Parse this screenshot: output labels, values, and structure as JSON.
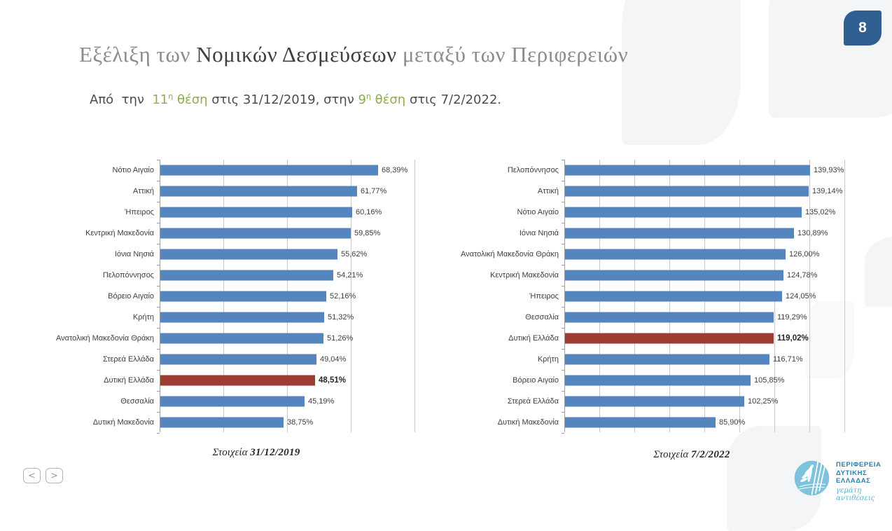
{
  "page_badge": "8",
  "title": {
    "part1": "Εξέλιξη των ",
    "part2": "Νομικών Δεσμεύσεων",
    "part3": " μεταξύ των Περιφερειών"
  },
  "subtitle": {
    "lead": "Από  την  ",
    "pos1": "11",
    "sup1": "η",
    "pos1b": " θέση",
    "mid": " στις 31/12/2019, στην ",
    "pos2": "9",
    "sup2": "η",
    "pos2b": " θέση",
    "tail": " στις 7/2/2022."
  },
  "colors": {
    "accent_blue": "#305F91",
    "bar_blue": "#5585BE",
    "bar_red": "#9E3B33",
    "green": "#8FAC52",
    "title_gray": "#8C8C8C",
    "title_dark": "#3F3F3F",
    "logo_circle": "#7EC3DB",
    "logo_text": "#2980A9"
  },
  "chart_data": [
    {
      "type": "bar",
      "orientation": "horizontal",
      "title": "Στοιχεία 31/12/2019",
      "categories": [
        "Νότιο Αιγαίο",
        "Αττική",
        "Ήπειρος",
        "Κεντρική Μακεδονία",
        "Ιόνια Νησιά",
        "Πελοπόννησος",
        "Βόρειο Αιγαίο",
        "Κρήτη",
        "Ανατολική Μακεδονία Θράκη",
        "Στερεά Ελλάδα",
        "Δυτική Ελλάδα",
        "Θεσσαλία",
        "Δυτική Μακεδονία"
      ],
      "values": [
        68.39,
        61.77,
        60.16,
        59.85,
        55.62,
        54.21,
        52.16,
        51.32,
        51.26,
        49.04,
        48.51,
        45.19,
        38.75
      ],
      "value_labels": [
        "68,39%",
        "61,77%",
        "60,16%",
        "59,85%",
        "55,62%",
        "54,21%",
        "52,16%",
        "51,32%",
        "51,26%",
        "49,04%",
        "48,51%",
        "45,19%",
        "38,75%"
      ],
      "highlight_index": 10,
      "highlight_category": "Δυτική Ελλάδα",
      "xlim": [
        0,
        80
      ],
      "xstep": 20,
      "grid": true,
      "bar_color": "#5585BE",
      "highlight_color": "#9E3B33"
    },
    {
      "type": "bar",
      "orientation": "horizontal",
      "title": "Στοιχεία 7/2/2022",
      "categories": [
        "Πελοπόννησος",
        "Αττική",
        "Νότιο Αιγαίο",
        "Ιόνια Νησιά",
        "Ανατολική Μακεδονία Θράκη",
        "Κεντρική Μακεδονία",
        "Ήπειρος",
        "Θεσσαλία",
        "Δυτική Ελλάδα",
        "Κρήτη",
        "Βόρειο Αιγαίο",
        "Στερεά Ελλάδα",
        "Δυτική Μακεδονία"
      ],
      "values": [
        139.93,
        139.14,
        135.02,
        130.89,
        126.0,
        124.78,
        124.05,
        119.29,
        119.02,
        116.71,
        105.85,
        102.25,
        85.9
      ],
      "value_labels": [
        "139,93%",
        "139,14%",
        "135,02%",
        "130,89%",
        "126,00%",
        "124,78%",
        "124,05%",
        "119,29%",
        "119,02%",
        "116,71%",
        "105,85%",
        "102,25%",
        "85,90%"
      ],
      "highlight_index": 8,
      "highlight_category": "Δυτική Ελλάδα",
      "xlim": [
        0,
        160
      ],
      "xstep": 20,
      "grid": true,
      "bar_color": "#5585BE",
      "highlight_color": "#9E3B33"
    }
  ],
  "captions": [
    {
      "prefix": "Στοιχεία ",
      "date": "31/12/2019"
    },
    {
      "prefix": "Στοιχεία ",
      "date": "7/2/2022"
    }
  ],
  "nav": {
    "prev": "<",
    "next": ">"
  },
  "logo": {
    "line1": "ΠΕΡΙΦΕΡΕΙΑ",
    "line2": "ΔΥΤΙΚΗΣ",
    "line3": "ΕΛΛΑΔΑΣ",
    "tagline": "γεμάτη αντιθέσεις"
  }
}
